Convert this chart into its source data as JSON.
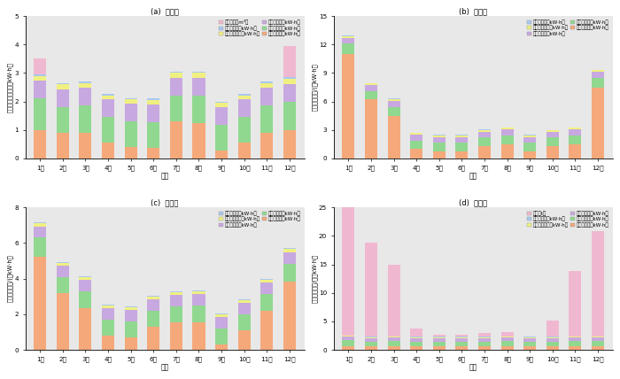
{
  "months": [
    "1月",
    "2月",
    "3月",
    "4月",
    "5月",
    "6月",
    "7月",
    "8月",
    "9月",
    "10月",
    "11月",
    "12月"
  ],
  "panel_a": {
    "title": "(a)  方案一",
    "ylabel": "建筑逐月能耗／（万kW·h）",
    "ylim": [
      0,
      5
    ],
    "yticks": [
      0,
      1,
      2,
      3,
      4,
      5
    ],
    "data": {
      "空调电耗": [
        1.0,
        0.9,
        0.9,
        0.55,
        0.4,
        0.38,
        1.3,
        1.25,
        0.28,
        0.55,
        0.9,
        1.0
      ],
      "照明电耗": [
        1.1,
        0.9,
        0.95,
        0.9,
        0.9,
        0.9,
        0.9,
        0.95,
        0.9,
        0.9,
        0.95,
        1.0
      ],
      "电梯电耗": [
        0.62,
        0.62,
        0.62,
        0.62,
        0.62,
        0.62,
        0.62,
        0.62,
        0.62,
        0.62,
        0.62,
        0.62
      ],
      "给排水电耗": [
        0.18,
        0.18,
        0.18,
        0.15,
        0.15,
        0.15,
        0.18,
        0.18,
        0.15,
        0.15,
        0.18,
        0.18
      ],
      "通风电耗": [
        0.05,
        0.05,
        0.05,
        0.05,
        0.05,
        0.05,
        0.05,
        0.05,
        0.05,
        0.05,
        0.05,
        0.05
      ],
      "天然气": [
        0.55,
        0.0,
        0.0,
        0.0,
        0.0,
        0.0,
        0.0,
        0.0,
        0.0,
        0.0,
        0.0,
        1.1
      ]
    },
    "legend_order": [
      "天然气（万m³）",
      "通风电耗（万kW·h）",
      "给排水电耗（万kW·h）",
      "电梯电耗（万kW·h）",
      "照明电耗（万kW·h）",
      "空调电耗（万kW·h）"
    ],
    "legend_color_keys": [
      "天然气",
      "通风电耗",
      "给排水电耗",
      "电梯电耗",
      "照明电耗",
      "空调电耗"
    ],
    "stack_order": [
      "空调电耗",
      "照明电耗",
      "电梯电耗",
      "给排水电耗",
      "通风电耗",
      "天然气"
    ],
    "colors": {
      "空调电耗": "#F5A87A",
      "照明电耗": "#90D890",
      "电梯电耗": "#C8A8E0",
      "给排水电耗": "#F0F080",
      "通风电耗": "#A8C8F0",
      "天然气": "#F0B8D0"
    }
  },
  "panel_b": {
    "title": "(b)  方案二",
    "ylabel": "建筑逐月电耗/(万kW·h）",
    "ylim": [
      0,
      15
    ],
    "yticks": [
      0,
      3,
      6,
      9,
      12,
      15
    ],
    "data": {
      "空调电耗": [
        11.0,
        6.2,
        4.5,
        1.0,
        0.75,
        0.75,
        1.3,
        1.5,
        0.75,
        1.3,
        1.5,
        7.5
      ],
      "照明电耗": [
        1.1,
        0.9,
        0.95,
        0.9,
        0.9,
        0.9,
        0.9,
        0.95,
        0.9,
        0.9,
        0.95,
        1.0
      ],
      "电梯电耗": [
        0.62,
        0.62,
        0.62,
        0.62,
        0.62,
        0.62,
        0.62,
        0.62,
        0.62,
        0.62,
        0.62,
        0.62
      ],
      "给排水电耗": [
        0.18,
        0.18,
        0.18,
        0.15,
        0.15,
        0.15,
        0.18,
        0.18,
        0.15,
        0.15,
        0.18,
        0.18
      ],
      "通风电耗": [
        0.05,
        0.05,
        0.05,
        0.05,
        0.05,
        0.05,
        0.05,
        0.05,
        0.05,
        0.05,
        0.05,
        0.05
      ]
    },
    "legend_order": [
      "通风电耗（万kW·h）",
      "给排水电耗（万kW·h）",
      "电梯电耗（万kW·h）",
      "照明电耗（万kW·h）",
      "空调电耗（万kW·h）"
    ],
    "legend_color_keys": [
      "通风电耗",
      "给排水电耗",
      "电梯电耗",
      "照明电耗",
      "空调电耗"
    ],
    "stack_order": [
      "空调电耗",
      "照明电耗",
      "电梯电耗",
      "给排水电耗",
      "通风电耗"
    ],
    "colors": {
      "空调电耗": "#F5A87A",
      "照明电耗": "#90D890",
      "电梯电耗": "#C8A8E0",
      "给排水电耗": "#F0F080",
      "通风电耗": "#A8C8F0"
    }
  },
  "panel_c": {
    "title": "(c)  方案三",
    "ylabel": "建筑逐月电耗/(万kW·h）",
    "ylim": [
      0,
      8
    ],
    "yticks": [
      0,
      2,
      4,
      6,
      8
    ],
    "data": {
      "空调电耗": [
        5.2,
        3.2,
        2.35,
        0.8,
        0.7,
        1.3,
        1.55,
        1.55,
        0.3,
        1.1,
        2.2,
        3.85
      ],
      "照明电耗": [
        1.1,
        0.9,
        0.95,
        0.9,
        0.9,
        0.9,
        0.9,
        0.95,
        0.9,
        0.9,
        0.95,
        1.0
      ],
      "电梯电耗": [
        0.62,
        0.62,
        0.62,
        0.62,
        0.62,
        0.62,
        0.62,
        0.62,
        0.62,
        0.62,
        0.62,
        0.62
      ],
      "给排水电耗": [
        0.18,
        0.18,
        0.18,
        0.15,
        0.15,
        0.15,
        0.18,
        0.18,
        0.15,
        0.15,
        0.18,
        0.18
      ],
      "通风电耗": [
        0.05,
        0.05,
        0.05,
        0.05,
        0.05,
        0.05,
        0.05,
        0.05,
        0.05,
        0.05,
        0.05,
        0.05
      ]
    },
    "legend_order": [
      "通风电耗（万kW·h）",
      "给排水电耗（万kW·h）",
      "电梯电耗（万kW·h）",
      "照明电耗（万kW·h）",
      "空调电耗（万kW·h）"
    ],
    "legend_color_keys": [
      "通风电耗",
      "给排水电耗",
      "电梯电耗",
      "照明电耗",
      "空调电耗"
    ],
    "stack_order": [
      "空调电耗",
      "照明电耗",
      "电梯电耗",
      "给排水电耗",
      "通风电耗"
    ],
    "colors": {
      "空调电耗": "#F5A87A",
      "照明电耗": "#90D890",
      "电梯电耗": "#C8A8E0",
      "给排水电耗": "#F0F080",
      "通风电耗": "#A8C8F0"
    }
  },
  "panel_d": {
    "title": "(d)  方案四",
    "ylabel": "建筑逐月能耗/（万kW·h）",
    "ylim": [
      0,
      25
    ],
    "yticks": [
      0,
      5,
      10,
      15,
      20,
      25
    ],
    "data": {
      "空调电耗": [
        0.55,
        0.55,
        0.55,
        0.55,
        0.55,
        0.55,
        0.55,
        0.55,
        0.55,
        0.55,
        0.55,
        0.55
      ],
      "照明电耗": [
        1.1,
        0.9,
        0.95,
        0.9,
        0.9,
        0.9,
        0.9,
        0.95,
        0.9,
        0.9,
        0.95,
        1.0
      ],
      "电梯电耗": [
        0.62,
        0.62,
        0.62,
        0.62,
        0.62,
        0.62,
        0.62,
        0.62,
        0.62,
        0.62,
        0.62,
        0.62
      ],
      "给排水电耗": [
        0.18,
        0.18,
        0.18,
        0.15,
        0.15,
        0.15,
        0.18,
        0.18,
        0.15,
        0.15,
        0.18,
        0.18
      ],
      "通风电耗": [
        0.05,
        0.05,
        0.05,
        0.05,
        0.05,
        0.05,
        0.05,
        0.05,
        0.05,
        0.05,
        0.05,
        0.05
      ],
      "燃燤": [
        22.5,
        16.5,
        12.5,
        1.5,
        0.3,
        0.3,
        0.7,
        0.7,
        0.0,
        2.8,
        11.5,
        18.5
      ]
    },
    "legend_order": [
      "燃燤（t）",
      "通风电耗（万kW·h）",
      "给排水电耗（万kW·h）",
      "电梯电耗（万kW·h）",
      "照明电耗（万kW·h）",
      "空调电耗（万kW·h）"
    ],
    "legend_color_keys": [
      "燃燤",
      "通风电耗",
      "给排水电耗",
      "电梯电耗",
      "照明电耗",
      "空调电耗"
    ],
    "stack_order": [
      "空调电耗",
      "照明电耗",
      "电梯电耗",
      "给排水电耗",
      "通风电耗",
      "燃燤"
    ],
    "colors": {
      "空调电耗": "#F5A87A",
      "照明电耗": "#90D890",
      "电梯电耗": "#C8A8E0",
      "给排水电耗": "#F0F080",
      "通风电耗": "#A8C8F0",
      "燃燤": "#F0B8D0"
    }
  },
  "xlabel": "月份",
  "bg_color": "#e8e8e8",
  "bar_width": 0.55
}
